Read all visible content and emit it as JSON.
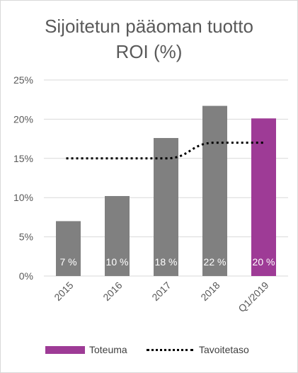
{
  "chart_data": {
    "type": "bar",
    "title_lines": [
      "Sijoitetun pääoman tuotto",
      "ROI (%)"
    ],
    "categories": [
      "2015",
      "2016",
      "2017",
      "2018",
      "Q1/2019"
    ],
    "series": [
      {
        "name": "Toteuma",
        "type": "bar",
        "values": [
          7,
          10.2,
          17.6,
          21.7,
          20.1
        ],
        "data_labels": [
          "7 %",
          "10 %",
          "18 %",
          "22 %",
          "20 %"
        ],
        "colors": [
          "#808080",
          "#808080",
          "#808080",
          "#808080",
          "#9e3b96"
        ]
      },
      {
        "name": "Tavoitetaso",
        "type": "line",
        "style": "dotted",
        "values": [
          15,
          15,
          15,
          17,
          17
        ],
        "color": "#000000"
      }
    ],
    "ylim": [
      0,
      25
    ],
    "yticks": [
      0,
      5,
      10,
      15,
      20,
      25
    ],
    "ytick_labels": [
      "0%",
      "5%",
      "10%",
      "15%",
      "20%",
      "25%"
    ],
    "grid": "horizontal",
    "legend": "bottom"
  },
  "legend": {
    "toteuma_label": "Toteuma",
    "toteuma_color": "#9e3b96",
    "tavoite_label": "Tavoitetaso"
  }
}
